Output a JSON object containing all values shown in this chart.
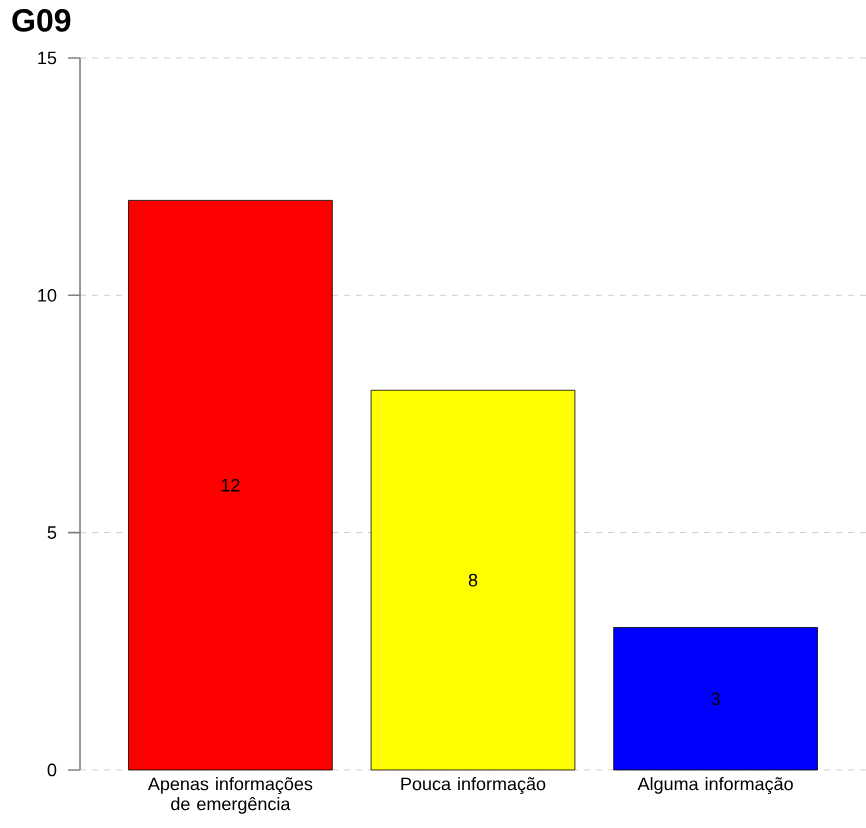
{
  "chart_data": {
    "type": "bar",
    "title": "G09",
    "categories": [
      "Apenas informações de emergência",
      "Pouca informação",
      "Alguma informação"
    ],
    "values": [
      12,
      8,
      3
    ],
    "colors": [
      "#ff0000",
      "#ffff00",
      "#0000ff"
    ],
    "ylim": [
      0,
      15
    ],
    "yticks": [
      0,
      5,
      10,
      15
    ],
    "grid": "y",
    "data_labels": true
  }
}
